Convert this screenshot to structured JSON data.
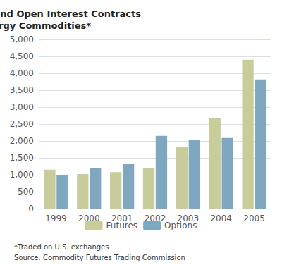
{
  "chart_data": {
    "type": "bar",
    "title": "Average Month-end Open Interest Contracts\nfor Energy Commodities*",
    "categories": [
      "1999",
      "2000",
      "2001",
      "2002",
      "2003",
      "2004",
      "2005"
    ],
    "series": [
      {
        "name": "Futures",
        "color": "#c8cc9a",
        "values": [
          1150,
          1020,
          1080,
          1190,
          1820,
          2680,
          4400
        ]
      },
      {
        "name": "Options",
        "color": "#7fa8c0",
        "values": [
          1000,
          1210,
          1310,
          2150,
          2030,
          2090,
          3820
        ]
      }
    ],
    "ylim": [
      0,
      5000
    ],
    "yticks": [
      0,
      500,
      {
        "value": 1000,
        "label": "1,000"
      },
      {
        "value": 1500,
        "label": "1,500"
      },
      {
        "value": 2000,
        "label": "2,000"
      },
      {
        "value": 2500,
        "label": "2,500"
      },
      {
        "value": 3000,
        "label": "3,000"
      },
      {
        "value": 3500,
        "label": "3,500"
      },
      {
        "value": 4000,
        "label": "4,000"
      },
      {
        "value": 4500,
        "label": "4,500"
      },
      {
        "value": 5000,
        "label": "5,000"
      }
    ],
    "grid": true,
    "legend": "bottom",
    "annotations": [
      "*Traded on U.S. exchanges",
      "Source: Commodity Futures Trading Commission"
    ]
  }
}
